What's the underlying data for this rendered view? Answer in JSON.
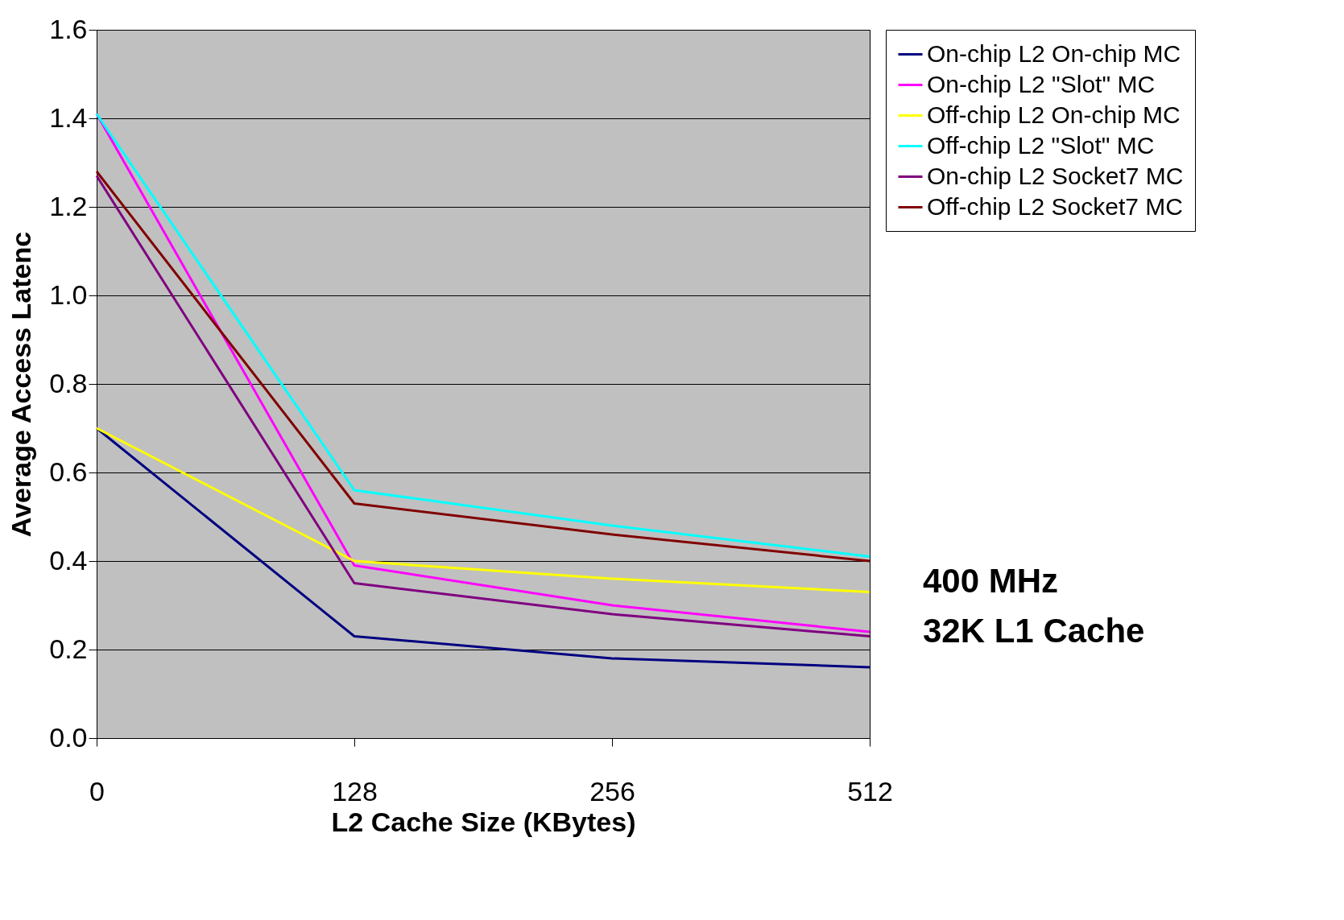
{
  "chart_data": {
    "type": "line",
    "xlabel": "L2 Cache Size (KBytes)",
    "ylabel": "Average Access Latenc",
    "categories": [
      "0",
      "128",
      "256",
      "512"
    ],
    "series": [
      {
        "name": "On-chip L2 On-chip MC",
        "color": "#000080",
        "values": [
          0.7,
          0.23,
          0.18,
          0.16
        ]
      },
      {
        "name": "On-chip L2 \"Slot\" MC",
        "color": "#ff00ff",
        "values": [
          1.41,
          0.39,
          0.3,
          0.24
        ]
      },
      {
        "name": "Off-chip L2 On-chip MC",
        "color": "#ffff00",
        "values": [
          0.7,
          0.4,
          0.36,
          0.33
        ]
      },
      {
        "name": "Off-chip L2 \"Slot\" MC",
        "color": "#00ffff",
        "values": [
          1.41,
          0.56,
          0.48,
          0.41
        ]
      },
      {
        "name": "On-chip L2 Socket7 MC",
        "color": "#800080",
        "values": [
          1.27,
          0.35,
          0.28,
          0.23
        ]
      },
      {
        "name": "Off-chip L2 Socket7 MC",
        "color": "#800000",
        "values": [
          1.28,
          0.53,
          0.46,
          0.4
        ]
      }
    ],
    "ylim": [
      0,
      1.6
    ],
    "yticks": [
      {
        "value": 0,
        "label": "0.0"
      },
      0.2,
      0.4,
      0.6,
      0.8,
      {
        "value": 1,
        "label": "1.0"
      },
      1.2,
      1.4,
      1.6
    ],
    "grid": "y",
    "legend": "top right",
    "line_style": "solid",
    "marker": "none",
    "annotations": [
      "400 MHz",
      "32K L1 Cache"
    ]
  }
}
